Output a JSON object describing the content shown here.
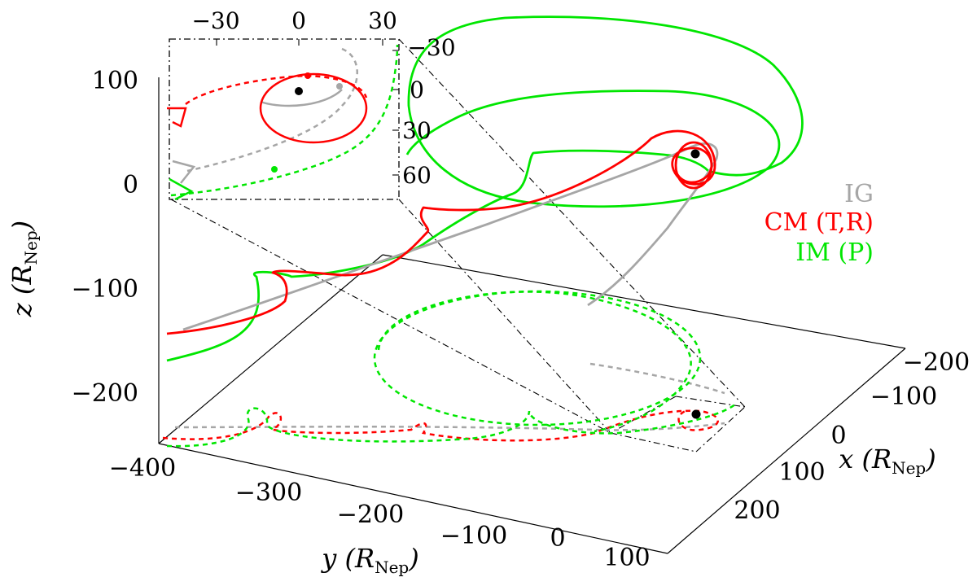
{
  "chart_data": [
    {
      "type": "line",
      "projection": "3d",
      "axes": {
        "x": {
          "label_var": "x",
          "label_unit": "R",
          "label_unit_sub": "Nep",
          "ticks": [
            "−200",
            "−100",
            "0",
            "100",
            "200"
          ],
          "range": [
            -250,
            250
          ]
        },
        "y": {
          "label_var": "y",
          "label_unit": "R",
          "label_unit_sub": "Nep",
          "ticks": [
            "−400",
            "−300",
            "−200",
            "−100",
            "0",
            "100"
          ],
          "range": [
            -400,
            100
          ]
        },
        "z": {
          "label_var": "z",
          "label_unit": "R",
          "label_unit_sub": "Nep",
          "ticks": [
            "100",
            "0",
            "−100",
            "−200"
          ],
          "range": [
            -250,
            130
          ]
        }
      },
      "legend_position": "right",
      "grid": false,
      "series": [
        {
          "name": "IG",
          "color": "#a6a6a6"
        },
        {
          "name": "CM (T,R)",
          "color": "#ff0000"
        },
        {
          "name": "IM (P)",
          "color": "#00e600"
        }
      ],
      "projections_on_xy_plane": "dashed"
    },
    {
      "type": "line",
      "role": "inset",
      "x_ticks": [
        "−30",
        "0",
        "30"
      ],
      "y_ticks": [
        "−30",
        "0",
        "30",
        "60"
      ],
      "series": [
        "IG",
        "CM (T,R)",
        "IM (P)"
      ]
    }
  ]
}
